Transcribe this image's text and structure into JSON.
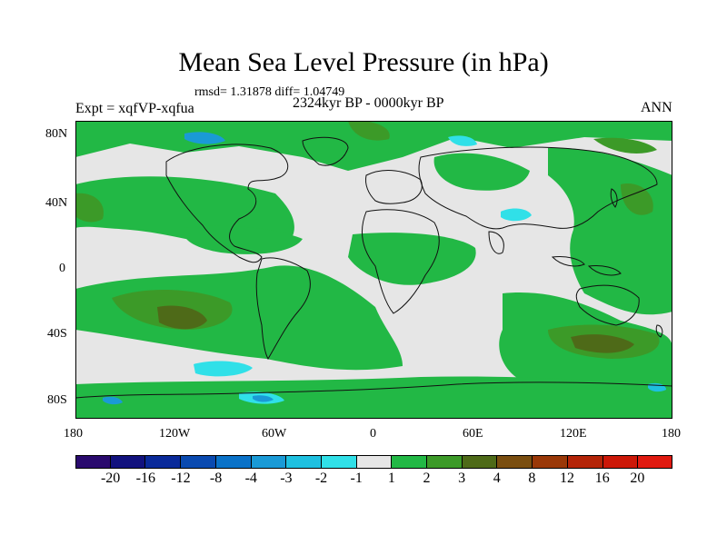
{
  "title": "Mean Sea Level Pressure (in hPa)",
  "stats": "rmsd= 1.31878 diff= 1.04749",
  "experiment": "Expt = xqfVP-xqfua",
  "period": "2324kyr BP - 0000kyr BP",
  "season": "ANN",
  "lat_labels": [
    "80N",
    "40N",
    "0",
    "40S",
    "80S"
  ],
  "lon_labels": [
    "180",
    "120W",
    "60W",
    "0",
    "60E",
    "120E",
    "180"
  ],
  "colorbar": {
    "labels": [
      "-20",
      "-16",
      "-12",
      "-8",
      "-4",
      "-3",
      "-2",
      "-1",
      "1",
      "2",
      "3",
      "4",
      "8",
      "12",
      "16",
      "20"
    ],
    "colors": [
      "#2a0a6e",
      "#12127e",
      "#0a2a9a",
      "#0a4ab0",
      "#0a72c8",
      "#1a9ad6",
      "#1ec0e0",
      "#30e0e8",
      "#e6e6e6",
      "#22b845",
      "#3c9a28",
      "#4e6a18",
      "#7a4e10",
      "#9a3808",
      "#b42408",
      "#cc1808",
      "#e01a10"
    ]
  },
  "colors": {
    "neutral": "#e6e6e6",
    "green": "#22b845",
    "olive": "#3c9a28",
    "brown": "#4e6a18",
    "cyan": "#30e0e8",
    "lightblue": "#1ec0e0",
    "blue": "#1a9ad6",
    "coast": "#111111"
  }
}
